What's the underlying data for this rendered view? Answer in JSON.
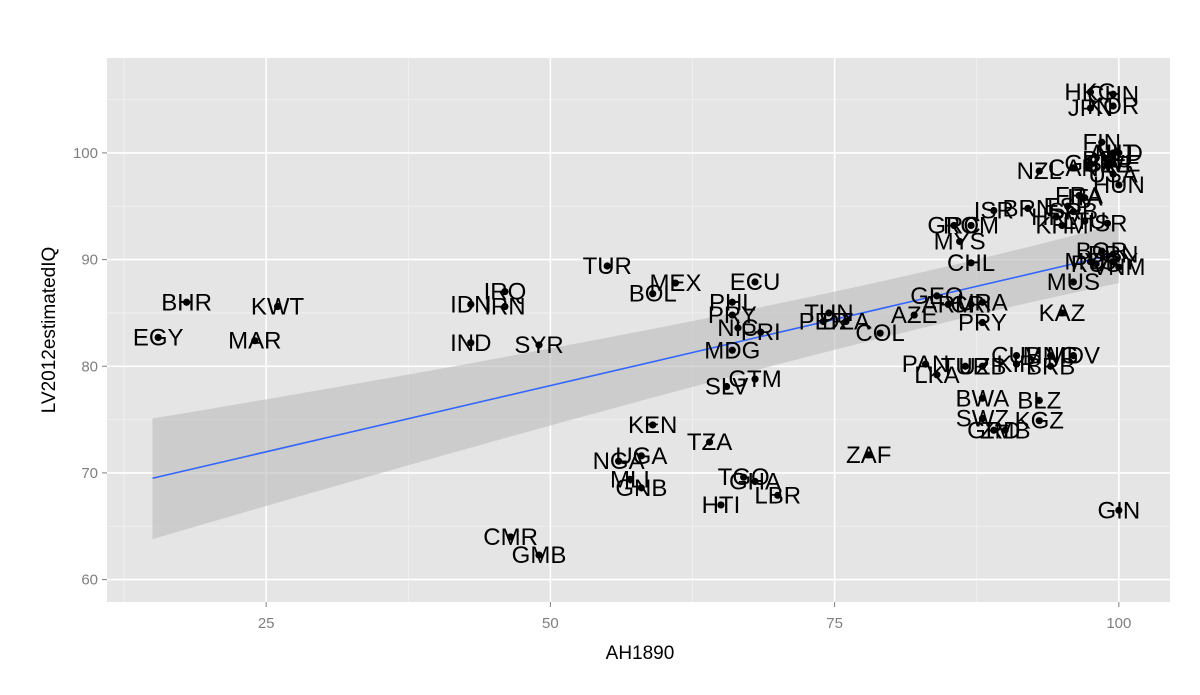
{
  "chart_data": {
    "type": "scatter",
    "title": "",
    "xlabel": "AH1890",
    "ylabel": "LV2012estimatedIQ",
    "xlim": [
      11,
      104.5
    ],
    "ylim": [
      57.9,
      108.9
    ],
    "x_ticks": [
      25,
      50,
      75,
      100
    ],
    "y_ticks": [
      60,
      70,
      80,
      90,
      100
    ],
    "grid": true,
    "panel_background": "#e5e5e5",
    "grid_color": "#ffffff",
    "point_color": "#000000",
    "trend": {
      "type": "linear",
      "color": "#3366ff",
      "ribbon_color": "#bbbbbb",
      "x_range": [
        15,
        100
      ],
      "y_start": 69.5,
      "y_end": 90.6,
      "ci_lower_start": 63.8,
      "ci_upper_start": 75.1,
      "ci_lower_mid": 82.2,
      "ci_upper_mid": 84.6,
      "x_mid": 72,
      "ci_lower_end": 87.8,
      "ci_upper_end": 93.4
    },
    "points": [
      {
        "label": "EGY",
        "x": 15.5,
        "y": 82.7
      },
      {
        "label": "BHR",
        "x": 18.0,
        "y": 86.0
      },
      {
        "label": "KWT",
        "x": 26.0,
        "y": 85.6
      },
      {
        "label": "MAR",
        "x": 24.0,
        "y": 82.4
      },
      {
        "label": "IDN",
        "x": 43.0,
        "y": 85.8
      },
      {
        "label": "IRQ",
        "x": 46.0,
        "y": 87.0
      },
      {
        "label": "IRN",
        "x": 46.0,
        "y": 85.6
      },
      {
        "label": "IND",
        "x": 43.0,
        "y": 82.2
      },
      {
        "label": "SYR",
        "x": 49.0,
        "y": 82.0
      },
      {
        "label": "TUR",
        "x": 55.0,
        "y": 89.4
      },
      {
        "label": "BOL",
        "x": 59.0,
        "y": 86.8
      },
      {
        "label": "MEX",
        "x": 61.0,
        "y": 87.8
      },
      {
        "label": "ECU",
        "x": 68.0,
        "y": 87.9
      },
      {
        "label": "PHL",
        "x": 66.0,
        "y": 86.0
      },
      {
        "label": "PRY",
        "x": 66.0,
        "y": 84.8
      },
      {
        "label": "NIC",
        "x": 66.5,
        "y": 83.6
      },
      {
        "label": "PRI",
        "x": 68.5,
        "y": 83.2
      },
      {
        "label": "MDG",
        "x": 66.0,
        "y": 81.5
      },
      {
        "label": "GTM",
        "x": 68.0,
        "y": 78.8
      },
      {
        "label": "SLV",
        "x": 65.5,
        "y": 78.1
      },
      {
        "label": "TUN",
        "x": 74.5,
        "y": 85.0
      },
      {
        "label": "PER",
        "x": 74.0,
        "y": 84.2
      },
      {
        "label": "DZA",
        "x": 76.0,
        "y": 84.2
      },
      {
        "label": "COL",
        "x": 79.0,
        "y": 83.1
      },
      {
        "label": "KEN",
        "x": 59.0,
        "y": 74.5
      },
      {
        "label": "UGA",
        "x": 58.0,
        "y": 71.6
      },
      {
        "label": "NGA",
        "x": 56.0,
        "y": 71.1
      },
      {
        "label": "MLI",
        "x": 57.0,
        "y": 69.4
      },
      {
        "label": "GNB",
        "x": 58.0,
        "y": 68.6
      },
      {
        "label": "TZA",
        "x": 64.0,
        "y": 72.9
      },
      {
        "label": "TGO",
        "x": 67.0,
        "y": 69.6
      },
      {
        "label": "GHA",
        "x": 68.0,
        "y": 69.2
      },
      {
        "label": "LBR",
        "x": 70.0,
        "y": 67.9
      },
      {
        "label": "HTI",
        "x": 65.0,
        "y": 67.0
      },
      {
        "label": "ZAF",
        "x": 78.0,
        "y": 71.7
      },
      {
        "label": "CMR",
        "x": 46.5,
        "y": 64.0
      },
      {
        "label": "GMB",
        "x": 49.0,
        "y": 62.3
      },
      {
        "label": "GEO",
        "x": 84.0,
        "y": 86.6
      },
      {
        "label": "AZE",
        "x": 82.0,
        "y": 84.8
      },
      {
        "label": "ARM",
        "x": 85.0,
        "y": 85.8
      },
      {
        "label": "CRI",
        "x": 87.0,
        "y": 85.8
      },
      {
        "label": "URA",
        "x": 88.0,
        "y": 86.0
      },
      {
        "label": "PRY",
        "x": 88.0,
        "y": 84.1
      },
      {
        "label": "KAZ",
        "x": 95.0,
        "y": 85.0
      },
      {
        "label": "MUS",
        "x": 96.0,
        "y": 87.9
      },
      {
        "label": "CHL",
        "x": 87.0,
        "y": 89.7
      },
      {
        "label": "MYS",
        "x": 86.0,
        "y": 91.7
      },
      {
        "label": "GRC",
        "x": 85.5,
        "y": 93.2
      },
      {
        "label": "ROM",
        "x": 87.0,
        "y": 93.2
      },
      {
        "label": "ISR",
        "x": 89.0,
        "y": 94.6
      },
      {
        "label": "BRN",
        "x": 92.0,
        "y": 94.8
      },
      {
        "label": "PAN",
        "x": 83.0,
        "y": 80.2
      },
      {
        "label": "LKA",
        "x": 84.0,
        "y": 79.2
      },
      {
        "label": "TUR",
        "x": 86.5,
        "y": 80.0
      },
      {
        "label": "UZB",
        "x": 88.0,
        "y": 80.0
      },
      {
        "label": "KIR",
        "x": 91.0,
        "y": 80.2
      },
      {
        "label": "CUB",
        "x": 91.0,
        "y": 81.0
      },
      {
        "label": "MNG",
        "x": 94.0,
        "y": 81.0
      },
      {
        "label": "MDV",
        "x": 96.0,
        "y": 81.0
      },
      {
        "label": "BRB",
        "x": 94.0,
        "y": 80.0
      },
      {
        "label": "BWA",
        "x": 88.0,
        "y": 77.0
      },
      {
        "label": "BLZ",
        "x": 93.0,
        "y": 76.8
      },
      {
        "label": "SWZ",
        "x": 88.0,
        "y": 75.1
      },
      {
        "label": "KGZ",
        "x": 93.0,
        "y": 74.9
      },
      {
        "label": "GRD",
        "x": 89.0,
        "y": 74.0
      },
      {
        "label": "ZMB",
        "x": 90.0,
        "y": 74.0
      },
      {
        "label": "GIN",
        "x": 100.0,
        "y": 66.5
      },
      {
        "label": "NZL",
        "x": 93.0,
        "y": 98.3
      },
      {
        "label": "CAN",
        "x": 96.0,
        "y": 98.6
      },
      {
        "label": "GBR",
        "x": 97.5,
        "y": 99.0
      },
      {
        "label": "FRA",
        "x": 96.5,
        "y": 96.0
      },
      {
        "label": "ESP",
        "x": 95.5,
        "y": 95.0
      },
      {
        "label": "ITA",
        "x": 97.0,
        "y": 95.8
      },
      {
        "label": "HRV",
        "x": 94.5,
        "y": 94.0
      },
      {
        "label": "SRB",
        "x": 96.0,
        "y": 94.5
      },
      {
        "label": "KHM",
        "x": 95.0,
        "y": 93.2
      },
      {
        "label": "LTU",
        "x": 97.0,
        "y": 93.6
      },
      {
        "label": "ISR",
        "x": 99.0,
        "y": 93.4
      },
      {
        "label": "CZE",
        "x": 99.0,
        "y": 98.9
      },
      {
        "label": "DEU",
        "x": 99.0,
        "y": 99.4
      },
      {
        "label": "AUT",
        "x": 99.5,
        "y": 100.0
      },
      {
        "label": "NLD",
        "x": 100.0,
        "y": 100.0
      },
      {
        "label": "FIN",
        "x": 98.5,
        "y": 101.0
      },
      {
        "label": "SWE",
        "x": 99.5,
        "y": 99.0
      },
      {
        "label": "HUN",
        "x": 100.0,
        "y": 97.0
      },
      {
        "label": "USA",
        "x": 99.5,
        "y": 98.0
      },
      {
        "label": "HKG",
        "x": 97.5,
        "y": 105.7
      },
      {
        "label": "CHN",
        "x": 99.5,
        "y": 105.5
      },
      {
        "label": "JPN",
        "x": 97.5,
        "y": 104.2
      },
      {
        "label": "KOR",
        "x": 99.5,
        "y": 104.4
      },
      {
        "label": "BGR",
        "x": 98.5,
        "y": 90.8
      },
      {
        "label": "BRN",
        "x": 99.5,
        "y": 90.5
      },
      {
        "label": "RUS",
        "x": 98.0,
        "y": 89.6
      },
      {
        "label": "URY",
        "x": 99.5,
        "y": 89.8
      },
      {
        "label": "VNM",
        "x": 100.0,
        "y": 89.3
      },
      {
        "label": "MYS",
        "x": 97.5,
        "y": 89.8
      }
    ]
  }
}
